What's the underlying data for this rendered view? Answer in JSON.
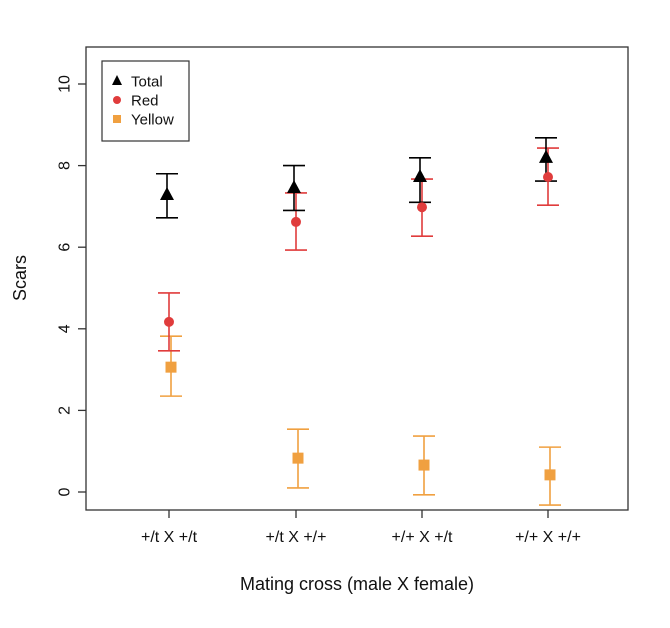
{
  "chart_data": {
    "type": "scatter",
    "title": "",
    "xlabel": "Mating cross (male X female)",
    "ylabel": "Scars",
    "categories": [
      "+/t X +/t",
      "+/t X +/+",
      "+/+ X +/t",
      "+/+ X +/+"
    ],
    "ylim": [
      -0.4,
      10.8
    ],
    "yticks": [
      0,
      2,
      4,
      6,
      8,
      10
    ],
    "grid": false,
    "legend_position": "top-left",
    "series": [
      {
        "name": "Total",
        "marker": "triangle",
        "color": "#000000",
        "values": [
          7.28,
          7.45,
          7.72,
          8.19
        ],
        "upper": [
          7.8,
          8.0,
          8.19,
          8.68
        ],
        "lower": [
          6.72,
          6.9,
          7.1,
          7.62
        ]
      },
      {
        "name": "Red",
        "marker": "circle",
        "color": "#E03C3C",
        "values": [
          4.17,
          6.62,
          6.98,
          7.72
        ],
        "upper": [
          4.88,
          7.33,
          7.67,
          8.43
        ],
        "lower": [
          3.46,
          5.93,
          6.27,
          7.03
        ]
      },
      {
        "name": "Yellow",
        "marker": "square",
        "color": "#F0A040",
        "values": [
          3.06,
          0.83,
          0.66,
          0.42
        ],
        "upper": [
          3.82,
          1.54,
          1.37,
          1.1
        ],
        "lower": [
          2.35,
          0.1,
          -0.07,
          -0.32
        ]
      }
    ]
  }
}
